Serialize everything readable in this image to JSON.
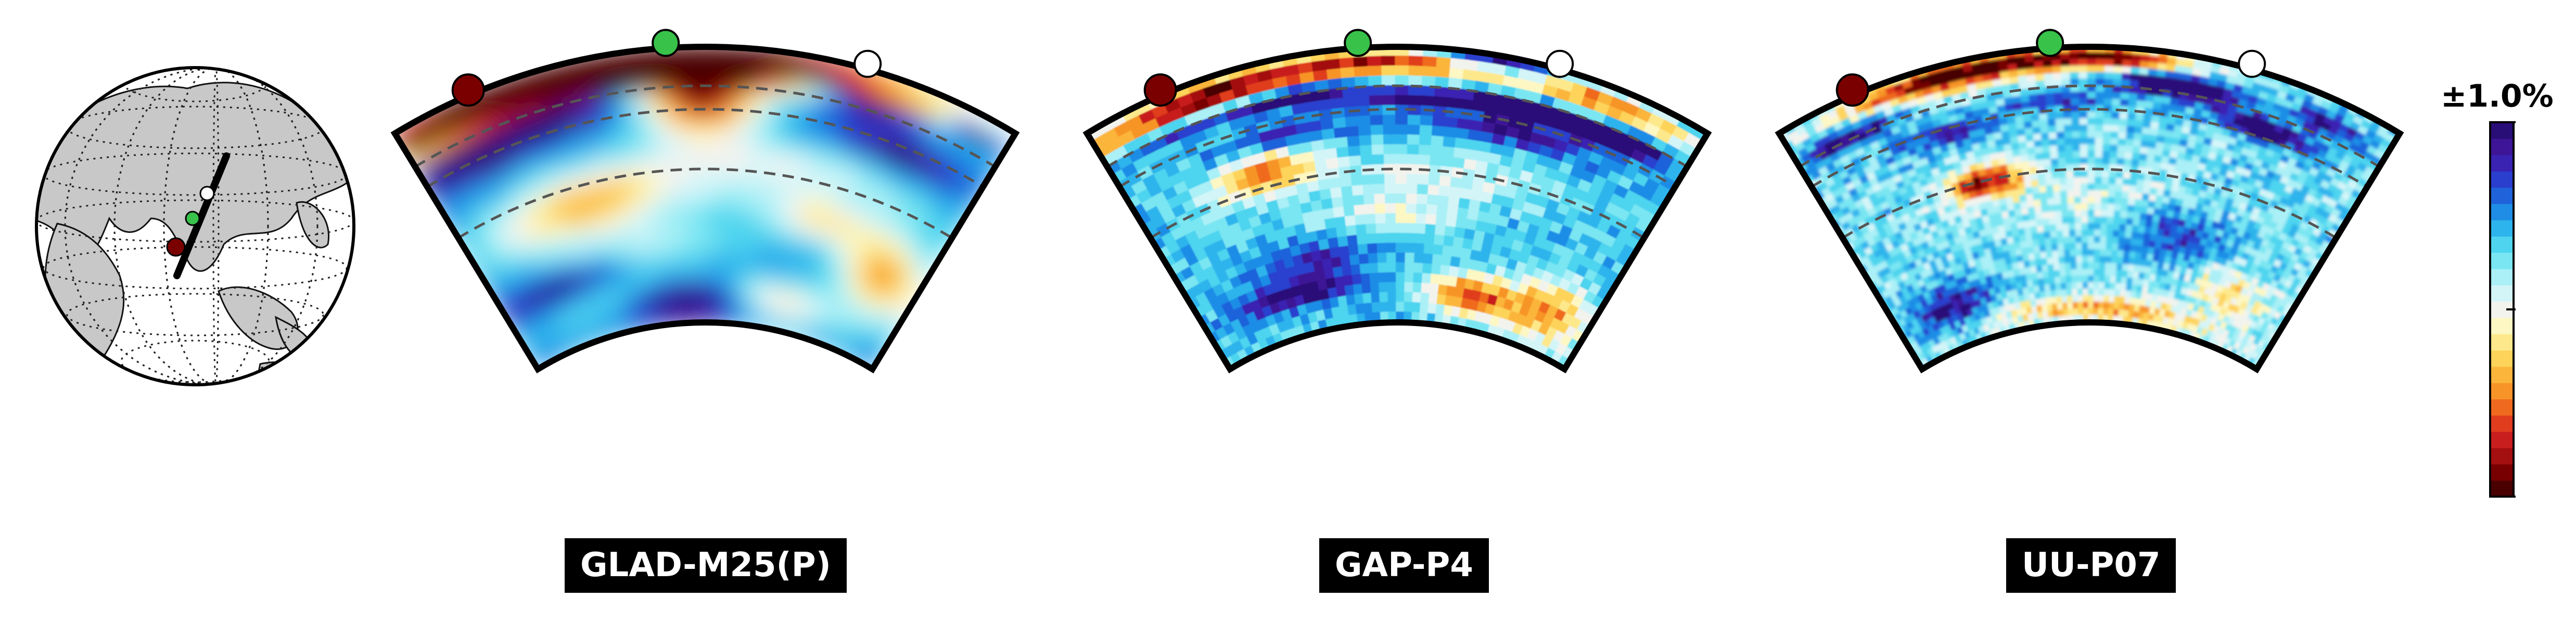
{
  "figure": {
    "colorbar": {
      "scale_label": "±1.0%",
      "colors": [
        "#4a0000",
        "#780000",
        "#a40f0f",
        "#c81e1e",
        "#e03c1e",
        "#ef6a1f",
        "#f79428",
        "#fbb53a",
        "#fdd35a",
        "#fde98c",
        "#fdf7c4",
        "#f3f3ee",
        "#d4f5f8",
        "#aaf0f6",
        "#7ae6f2",
        "#4ed4ef",
        "#2eb4ec",
        "#1f8de6",
        "#1f62da",
        "#2a3fce",
        "#3a22b3",
        "#3d1596",
        "#2a0e78"
      ]
    },
    "stations": [
      {
        "name": "red",
        "color": "#7a0000"
      },
      {
        "name": "green",
        "color": "#38c24a"
      },
      {
        "name": "white",
        "color": "#ffffff"
      }
    ],
    "panels": [
      {
        "label": "GLAD-M25(P)",
        "style": "smooth"
      },
      {
        "label": "GAP-P4",
        "style": "blocky"
      },
      {
        "label": "UU-P07",
        "style": "fine"
      }
    ]
  }
}
